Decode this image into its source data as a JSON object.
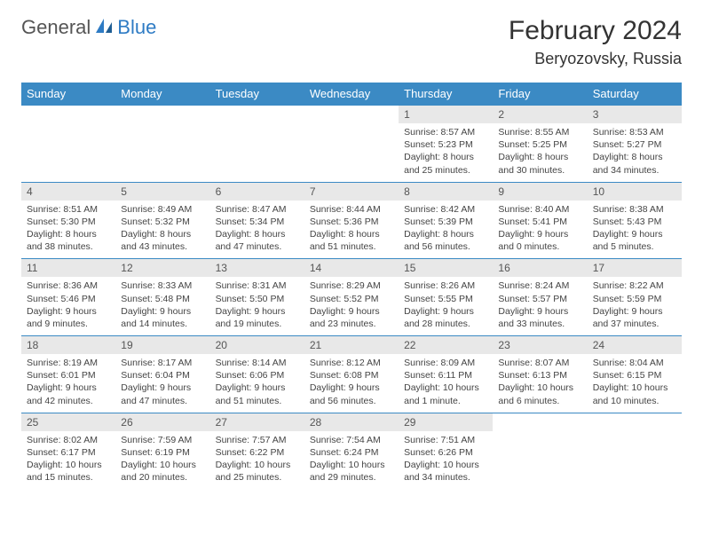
{
  "logo": {
    "part1": "General",
    "part2": "Blue"
  },
  "title": "February 2024",
  "location": "Beryozovsky, Russia",
  "colors": {
    "header_bg": "#3b8ac4",
    "header_text": "#ffffff",
    "daynum_bg": "#e8e8e8",
    "border": "#3b8ac4",
    "logo_accent": "#2e7bc4"
  },
  "day_headers": [
    "Sunday",
    "Monday",
    "Tuesday",
    "Wednesday",
    "Thursday",
    "Friday",
    "Saturday"
  ],
  "weeks": [
    [
      null,
      null,
      null,
      null,
      {
        "n": "1",
        "sr": "8:57 AM",
        "ss": "5:23 PM",
        "dl": "8 hours and 25 minutes."
      },
      {
        "n": "2",
        "sr": "8:55 AM",
        "ss": "5:25 PM",
        "dl": "8 hours and 30 minutes."
      },
      {
        "n": "3",
        "sr": "8:53 AM",
        "ss": "5:27 PM",
        "dl": "8 hours and 34 minutes."
      }
    ],
    [
      {
        "n": "4",
        "sr": "8:51 AM",
        "ss": "5:30 PM",
        "dl": "8 hours and 38 minutes."
      },
      {
        "n": "5",
        "sr": "8:49 AM",
        "ss": "5:32 PM",
        "dl": "8 hours and 43 minutes."
      },
      {
        "n": "6",
        "sr": "8:47 AM",
        "ss": "5:34 PM",
        "dl": "8 hours and 47 minutes."
      },
      {
        "n": "7",
        "sr": "8:44 AM",
        "ss": "5:36 PM",
        "dl": "8 hours and 51 minutes."
      },
      {
        "n": "8",
        "sr": "8:42 AM",
        "ss": "5:39 PM",
        "dl": "8 hours and 56 minutes."
      },
      {
        "n": "9",
        "sr": "8:40 AM",
        "ss": "5:41 PM",
        "dl": "9 hours and 0 minutes."
      },
      {
        "n": "10",
        "sr": "8:38 AM",
        "ss": "5:43 PM",
        "dl": "9 hours and 5 minutes."
      }
    ],
    [
      {
        "n": "11",
        "sr": "8:36 AM",
        "ss": "5:46 PM",
        "dl": "9 hours and 9 minutes."
      },
      {
        "n": "12",
        "sr": "8:33 AM",
        "ss": "5:48 PM",
        "dl": "9 hours and 14 minutes."
      },
      {
        "n": "13",
        "sr": "8:31 AM",
        "ss": "5:50 PM",
        "dl": "9 hours and 19 minutes."
      },
      {
        "n": "14",
        "sr": "8:29 AM",
        "ss": "5:52 PM",
        "dl": "9 hours and 23 minutes."
      },
      {
        "n": "15",
        "sr": "8:26 AM",
        "ss": "5:55 PM",
        "dl": "9 hours and 28 minutes."
      },
      {
        "n": "16",
        "sr": "8:24 AM",
        "ss": "5:57 PM",
        "dl": "9 hours and 33 minutes."
      },
      {
        "n": "17",
        "sr": "8:22 AM",
        "ss": "5:59 PM",
        "dl": "9 hours and 37 minutes."
      }
    ],
    [
      {
        "n": "18",
        "sr": "8:19 AM",
        "ss": "6:01 PM",
        "dl": "9 hours and 42 minutes."
      },
      {
        "n": "19",
        "sr": "8:17 AM",
        "ss": "6:04 PM",
        "dl": "9 hours and 47 minutes."
      },
      {
        "n": "20",
        "sr": "8:14 AM",
        "ss": "6:06 PM",
        "dl": "9 hours and 51 minutes."
      },
      {
        "n": "21",
        "sr": "8:12 AM",
        "ss": "6:08 PM",
        "dl": "9 hours and 56 minutes."
      },
      {
        "n": "22",
        "sr": "8:09 AM",
        "ss": "6:11 PM",
        "dl": "10 hours and 1 minute."
      },
      {
        "n": "23",
        "sr": "8:07 AM",
        "ss": "6:13 PM",
        "dl": "10 hours and 6 minutes."
      },
      {
        "n": "24",
        "sr": "8:04 AM",
        "ss": "6:15 PM",
        "dl": "10 hours and 10 minutes."
      }
    ],
    [
      {
        "n": "25",
        "sr": "8:02 AM",
        "ss": "6:17 PM",
        "dl": "10 hours and 15 minutes."
      },
      {
        "n": "26",
        "sr": "7:59 AM",
        "ss": "6:19 PM",
        "dl": "10 hours and 20 minutes."
      },
      {
        "n": "27",
        "sr": "7:57 AM",
        "ss": "6:22 PM",
        "dl": "10 hours and 25 minutes."
      },
      {
        "n": "28",
        "sr": "7:54 AM",
        "ss": "6:24 PM",
        "dl": "10 hours and 29 minutes."
      },
      {
        "n": "29",
        "sr": "7:51 AM",
        "ss": "6:26 PM",
        "dl": "10 hours and 34 minutes."
      },
      null,
      null
    ]
  ],
  "labels": {
    "sunrise": "Sunrise:",
    "sunset": "Sunset:",
    "daylight": "Daylight:"
  }
}
